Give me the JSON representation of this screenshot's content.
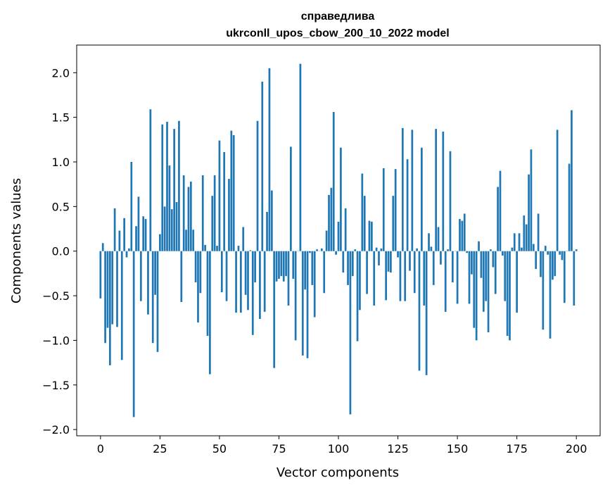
{
  "chart_data": {
    "type": "bar",
    "title": "справедлива",
    "subtitle": "ukrconll_upos_cbow_200_10_2022 model",
    "xlabel": "Vector components",
    "ylabel": "Components values",
    "xlim": [
      -10,
      210
    ],
    "ylim": [
      -2.07,
      2.31
    ],
    "xticks": [
      0,
      25,
      50,
      75,
      100,
      125,
      150,
      175,
      200
    ],
    "xtick_labels": [
      "0",
      "25",
      "50",
      "75",
      "100",
      "125",
      "150",
      "175",
      "200"
    ],
    "yticks": [
      -2.0,
      -1.5,
      -1.0,
      -0.5,
      0.0,
      0.5,
      1.0,
      1.5,
      2.0
    ],
    "ytick_labels": [
      "−2.0",
      "−1.5",
      "−1.0",
      "−0.5",
      "0.0",
      "0.5",
      "1.0",
      "1.5",
      "2.0"
    ],
    "bar_color": "#1f77b4",
    "values": [
      -0.53,
      0.09,
      -1.03,
      -0.86,
      -1.28,
      -0.82,
      0.48,
      -0.85,
      0.23,
      -1.22,
      0.37,
      -0.07,
      0.03,
      1.0,
      -1.86,
      0.28,
      0.61,
      -0.56,
      0.39,
      0.36,
      -0.71,
      1.59,
      -1.03,
      -0.49,
      -1.13,
      0.19,
      1.42,
      0.5,
      1.45,
      0.96,
      0.47,
      1.37,
      0.55,
      1.46,
      -0.57,
      0.85,
      0.24,
      0.72,
      0.78,
      0.24,
      -0.35,
      -0.8,
      -0.47,
      0.85,
      0.07,
      -0.95,
      -1.38,
      0.62,
      0.85,
      0.06,
      1.24,
      -0.46,
      1.11,
      -0.56,
      0.81,
      1.35,
      1.3,
      -0.69,
      0.06,
      -0.69,
      0.27,
      -0.49,
      -0.66,
      0.01,
      -0.94,
      -0.35,
      1.46,
      -0.76,
      1.9,
      -0.68,
      0.44,
      2.05,
      0.68,
      -1.31,
      -0.34,
      -0.31,
      -0.28,
      -0.34,
      -0.28,
      -0.61,
      1.17,
      -0.31,
      -1.0,
      0.0,
      2.1,
      -1.17,
      -0.43,
      -1.2,
      -0.02,
      -0.38,
      -0.74,
      0.02,
      0.0,
      0.03,
      -0.47,
      0.23,
      0.63,
      0.71,
      1.56,
      -0.04,
      0.33,
      1.16,
      -0.24,
      0.48,
      -0.38,
      -1.83,
      -0.28,
      0.02,
      -1.01,
      -0.66,
      0.87,
      0.62,
      -0.48,
      0.34,
      0.33,
      -0.61,
      0.04,
      -0.16,
      0.03,
      0.93,
      -0.55,
      -0.23,
      -0.24,
      0.62,
      0.92,
      -0.07,
      -0.56,
      1.38,
      -0.56,
      1.03,
      -0.22,
      1.36,
      -0.47,
      0.03,
      -1.34,
      1.16,
      -0.61,
      -1.39,
      0.2,
      0.05,
      -0.38,
      1.37,
      0.27,
      -0.15,
      1.34,
      -0.68,
      0.02,
      1.12,
      -0.35,
      0.0,
      -0.59,
      0.36,
      0.34,
      0.42,
      -0.02,
      -0.59,
      -0.26,
      -0.86,
      -1.0,
      0.11,
      -0.3,
      -0.68,
      -0.56,
      -0.91,
      0.02,
      -0.18,
      -0.48,
      0.72,
      0.9,
      -0.05,
      -0.56,
      -0.95,
      -1.0,
      0.04,
      0.2,
      -0.69,
      0.2,
      0.04,
      0.4,
      0.3,
      0.86,
      1.14,
      0.08,
      -0.2,
      0.42,
      -0.29,
      -0.88,
      0.06,
      -0.04,
      -0.98,
      -0.32,
      -0.28,
      1.36,
      -0.04,
      -0.1,
      -0.58,
      0.0,
      0.98,
      1.58,
      -0.61,
      0.02
    ]
  }
}
